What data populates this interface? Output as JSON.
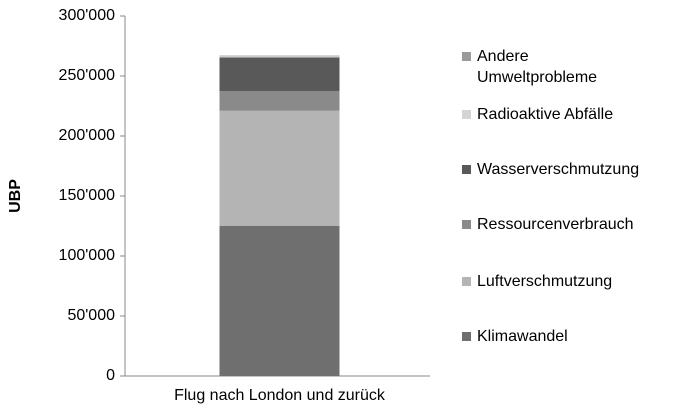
{
  "chart_data": {
    "type": "stacked_bar",
    "y_label": "UBP",
    "categories": [
      "Flug nach London und zurück"
    ],
    "series": [
      {
        "name": "Klimawandel",
        "color": "#6f6f6f",
        "values": [
          125000
        ]
      },
      {
        "name": "Luftverschmutzung",
        "color": "#b4b4b4",
        "values": [
          96000
        ]
      },
      {
        "name": "Ressourcenverbrauch",
        "color": "#8a8a8a",
        "values": [
          16500
        ]
      },
      {
        "name": "Wasserverschmutzung",
        "color": "#595959",
        "values": [
          28000
        ]
      },
      {
        "name": "Radioaktive Abfälle",
        "color": "#d4d4d4",
        "values": [
          1000
        ]
      },
      {
        "name": "Andere Umweltprobleme",
        "color": "#9a9a9a",
        "values": [
          500
        ]
      }
    ],
    "ylim": [
      0,
      300000
    ],
    "yticks": [
      0,
      {
        "value": 50000,
        "label": "50'000"
      },
      {
        "value": 100000,
        "label": "100'000"
      },
      {
        "value": 150000,
        "label": "150'000"
      },
      {
        "value": 200000,
        "label": "200'000"
      },
      {
        "value": 250000,
        "label": "250'000"
      },
      {
        "value": 300000,
        "label": "300'000"
      }
    ],
    "legend": "right"
  }
}
